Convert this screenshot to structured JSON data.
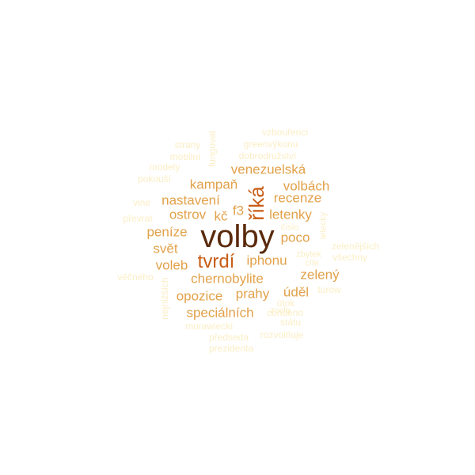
{
  "palette": {
    "darkest": "#5a2a0c",
    "dark": "#c85c14",
    "mid": "#e2a14a",
    "light": "#f0cf8c",
    "faint": "#fbeec6"
  },
  "words": [
    {
      "text": "volby"
    },
    {
      "text": "říká"
    },
    {
      "text": "tvrdí"
    },
    {
      "text": "venezuelská"
    },
    {
      "text": "kampaň"
    },
    {
      "text": "volbách"
    },
    {
      "text": "nastavení"
    },
    {
      "text": "recenze"
    },
    {
      "text": "f3"
    },
    {
      "text": "ostrov"
    },
    {
      "text": "kč"
    },
    {
      "text": "letenky"
    },
    {
      "text": "peníze"
    },
    {
      "text": "poco"
    },
    {
      "text": "svět"
    },
    {
      "text": "iphonu"
    },
    {
      "text": "voleb"
    },
    {
      "text": "chernobylite"
    },
    {
      "text": "zelený"
    },
    {
      "text": "opozice"
    },
    {
      "text": "prahy"
    },
    {
      "text": "úděl"
    },
    {
      "text": "speciálních"
    },
    {
      "text": "vzbouřenci"
    },
    {
      "text": "strany"
    },
    {
      "text": "greenvýkonu"
    },
    {
      "text": "fungovat"
    },
    {
      "text": "mobilní"
    },
    {
      "text": "dobrodružství"
    },
    {
      "text": "modely"
    },
    {
      "text": "pokouší"
    },
    {
      "text": "vine"
    },
    {
      "text": "převrat"
    },
    {
      "text": "číslo"
    },
    {
      "text": "letecky"
    },
    {
      "text": "zbytek"
    },
    {
      "text": "zelenějších"
    },
    {
      "text": "všechny"
    },
    {
      "text": "cíle"
    },
    {
      "text": "věčného"
    },
    {
      "text": "nejnižších"
    },
    {
      "text": "turow"
    },
    {
      "text": "útok"
    },
    {
      "text": "zcela"
    },
    {
      "text": "condeno"
    },
    {
      "text": "státu"
    },
    {
      "text": "morawiecki"
    },
    {
      "text": "rozvolňuje"
    },
    {
      "text": "předseda"
    },
    {
      "text": "prezidenta"
    }
  ]
}
